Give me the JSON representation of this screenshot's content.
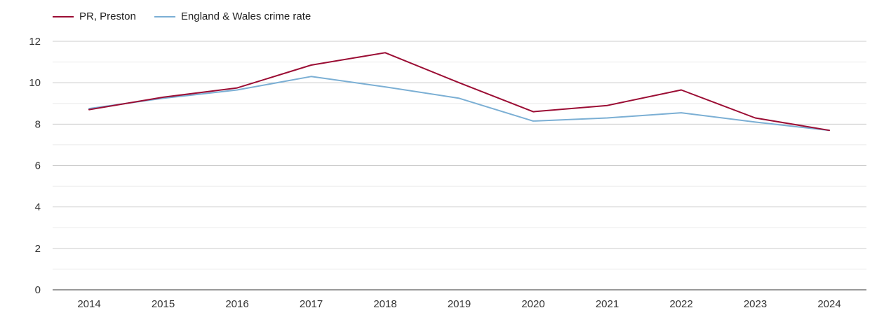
{
  "chart_data": {
    "type": "line",
    "title": "",
    "xlabel": "",
    "ylabel": "",
    "categories": [
      "2014",
      "2015",
      "2016",
      "2017",
      "2018",
      "2019",
      "2020",
      "2021",
      "2022",
      "2023",
      "2024"
    ],
    "ylim": [
      0,
      12
    ],
    "yticks": [
      0,
      2,
      4,
      6,
      8,
      10,
      12
    ],
    "grid": true,
    "legend_position": "top-left",
    "series": [
      {
        "name": "PR, Preston",
        "color": "#9b0d34",
        "values": [
          8.7,
          9.3,
          9.75,
          10.85,
          11.45,
          10.0,
          8.6,
          8.9,
          9.65,
          8.3,
          7.7
        ]
      },
      {
        "name": "England & Wales crime rate",
        "color": "#7bafd4",
        "values": [
          8.75,
          9.25,
          9.65,
          10.3,
          9.8,
          9.25,
          8.15,
          8.3,
          8.55,
          8.1,
          7.7
        ]
      }
    ]
  }
}
